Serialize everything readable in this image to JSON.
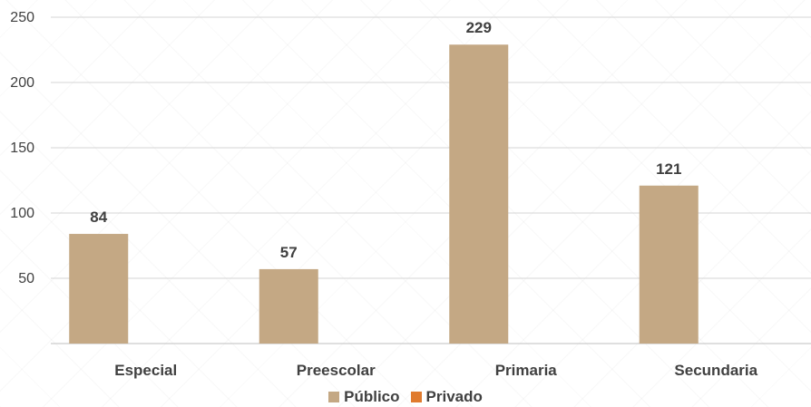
{
  "chart_data": {
    "type": "bar",
    "title": "",
    "xlabel": "",
    "ylabel": "",
    "categories": [
      "Especial",
      "Preescolar",
      "Primaria",
      "Secundaria"
    ],
    "series": [
      {
        "name": "Público",
        "values": [
          84,
          57,
          229,
          121
        ],
        "color": "#c4a884"
      },
      {
        "name": "Privado",
        "values": [
          0,
          0,
          0,
          0
        ],
        "color": "#e07b2e"
      }
    ],
    "ylim": [
      0,
      250
    ],
    "yticks": [
      50,
      100,
      150,
      200,
      250
    ],
    "grid": true,
    "legend_position": "bottom"
  }
}
